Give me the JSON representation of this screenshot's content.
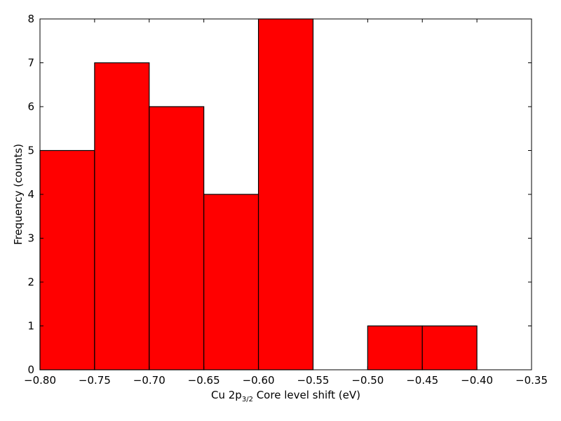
{
  "chart_data": {
    "type": "bar",
    "title": "",
    "xlabel": {
      "prefix": "Cu 2p",
      "subscript": "3/2",
      "suffix": " Core level shift (eV)"
    },
    "ylabel": "Frequency (counts)",
    "xlim": [
      -0.8,
      -0.35
    ],
    "ylim": [
      0,
      8
    ],
    "bar_color": "#ff0000",
    "bins": [
      {
        "left": -0.8,
        "right": -0.75,
        "value": 5
      },
      {
        "left": -0.75,
        "right": -0.7,
        "value": 7
      },
      {
        "left": -0.7,
        "right": -0.65,
        "value": 6
      },
      {
        "left": -0.65,
        "right": -0.6,
        "value": 4
      },
      {
        "left": -0.6,
        "right": -0.55,
        "value": 8
      },
      {
        "left": -0.55,
        "right": -0.5,
        "value": 0
      },
      {
        "left": -0.5,
        "right": -0.45,
        "value": 1
      },
      {
        "left": -0.45,
        "right": -0.4,
        "value": 1
      }
    ],
    "x_ticks": [
      "−0.80",
      "−0.75",
      "−0.70",
      "−0.65",
      "−0.60",
      "−0.55",
      "−0.50",
      "−0.45",
      "−0.40",
      "−0.35"
    ],
    "x_tick_values": [
      -0.8,
      -0.75,
      -0.7,
      -0.65,
      -0.6,
      -0.55,
      -0.5,
      -0.45,
      -0.4,
      -0.35
    ],
    "y_ticks": [
      "0",
      "1",
      "2",
      "3",
      "4",
      "5",
      "6",
      "7",
      "8"
    ],
    "y_tick_values": [
      0,
      1,
      2,
      3,
      4,
      5,
      6,
      7,
      8
    ],
    "grid": false,
    "legend": "none"
  }
}
